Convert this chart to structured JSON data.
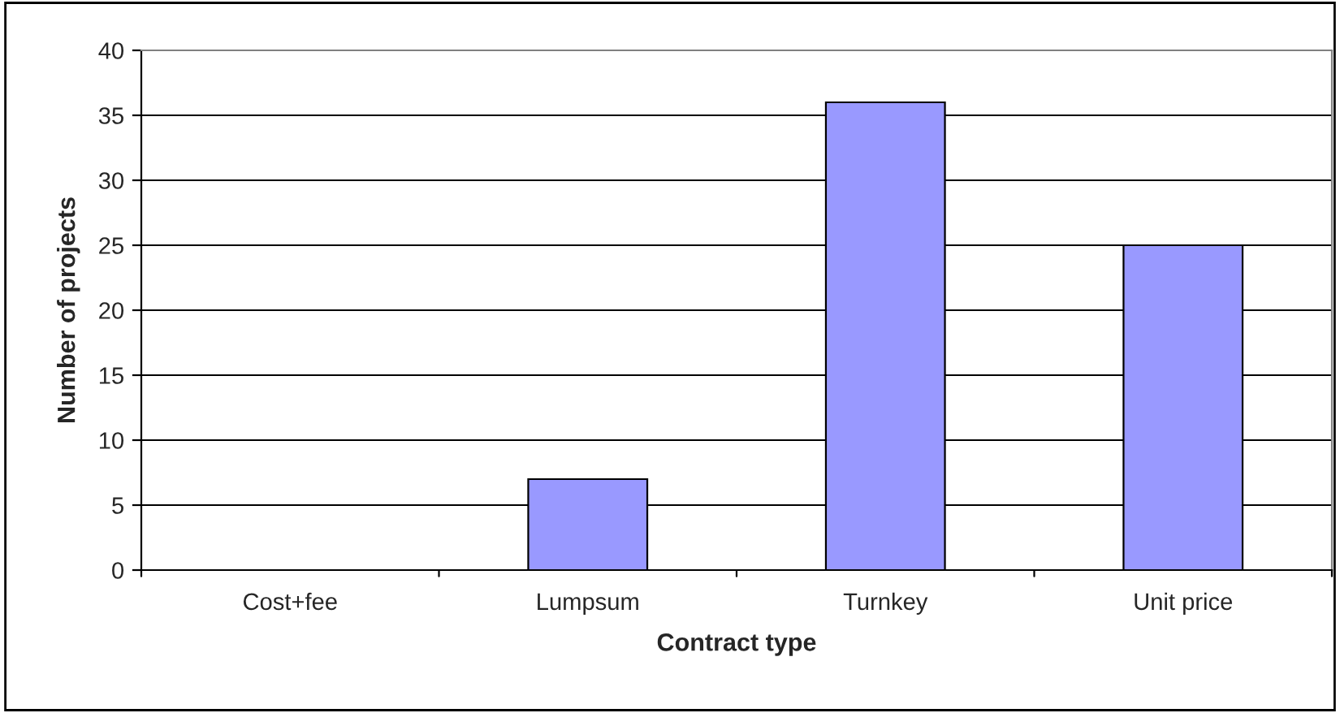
{
  "chart_data": {
    "type": "bar",
    "xlabel": "Contract type",
    "ylabel": "Number of projects",
    "categories": [
      "Cost+fee",
      "Lumpsum",
      "Turnkey",
      "Unit price"
    ],
    "values": [
      0,
      7,
      36,
      25
    ],
    "color": "#9999ff",
    "ylim": [
      0,
      40
    ],
    "yticks": [
      0,
      5,
      10,
      15,
      20,
      25,
      30,
      35,
      40
    ],
    "grid": "y",
    "legend": false
  }
}
